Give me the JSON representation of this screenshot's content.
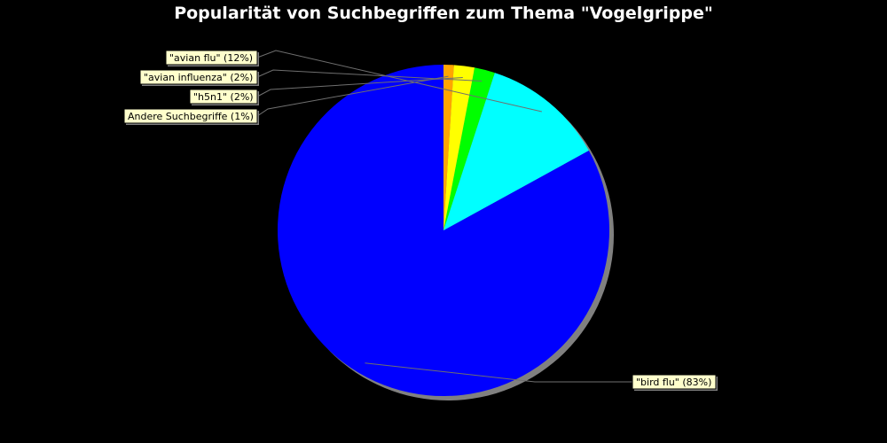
{
  "chart_data": {
    "type": "pie",
    "title": "Popularität von Suchbegriffen zum Thema \"Vogelgrippe\"",
    "slices": [
      {
        "label": "\"bird flu\" (83%)",
        "value": 83,
        "color": "#0000ff"
      },
      {
        "label": "\"avian flu\" (12%)",
        "value": 12,
        "color": "#00ffff"
      },
      {
        "label": "\"avian influenza\" (2%)",
        "value": 2,
        "color": "#00ff00"
      },
      {
        "label": "\"h5n1\" (2%)",
        "value": 2,
        "color": "#ffff00"
      },
      {
        "label": "Andere Suchbegriffe (1%)",
        "value": 1,
        "color": "#ffa500"
      }
    ],
    "background": "#000000",
    "label_background": "#ffffcc",
    "shadow_color": "#808080"
  }
}
